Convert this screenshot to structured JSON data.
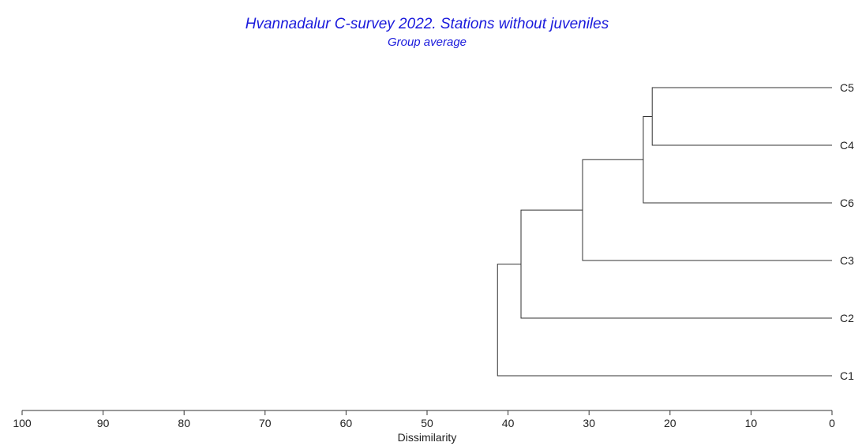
{
  "chart_data": {
    "type": "dendrogram",
    "title": "Hvannadalur C-survey 2022. Stations without juveniles",
    "subtitle": "Group average",
    "xlabel": "Dissimilarity",
    "xlim": [
      100,
      0
    ],
    "xticks": [
      100,
      90,
      80,
      70,
      60,
      50,
      40,
      30,
      20,
      10,
      0
    ],
    "leaves": [
      "C5",
      "C4",
      "C6",
      "C3",
      "C2",
      "C1"
    ],
    "merges": [
      {
        "left": "C5",
        "right": "C4",
        "height": 22.2
      },
      {
        "left": "C5+C4",
        "right": "C6",
        "height": 23.3
      },
      {
        "left": "C5+C4+C6",
        "right": "C3",
        "height": 30.8
      },
      {
        "left": "C5+C4+C6+C3",
        "right": "C2",
        "height": 38.4
      },
      {
        "left": "C5+C4+C6+C3+C2",
        "right": "C1",
        "height": 41.3
      }
    ],
    "title_color": "#1a1adc",
    "line_color": "#333333"
  }
}
